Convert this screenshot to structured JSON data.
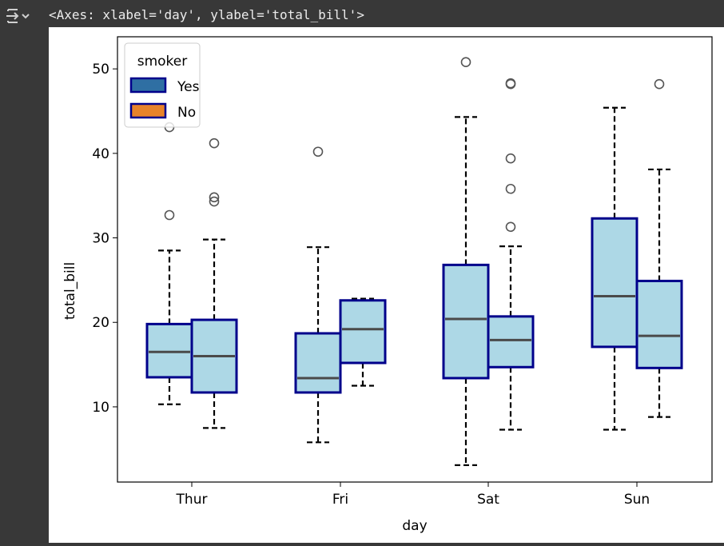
{
  "output": {
    "repr_text": "<Axes: xlabel='day', ylabel='total_bill'>",
    "icon": "output-expand-icon"
  },
  "chart_data": {
    "type": "box",
    "xlabel": "day",
    "ylabel": "total_bill",
    "categories": [
      "Thur",
      "Fri",
      "Sat",
      "Sun"
    ],
    "yticks": [
      10,
      20,
      30,
      40,
      50
    ],
    "ylim": [
      1.1,
      53.8
    ],
    "grid": false,
    "legend": {
      "title": "smoker",
      "placement": "upper left",
      "entries": [
        {
          "label": "Yes",
          "color": "#2f6fa3"
        },
        {
          "label": "No",
          "color": "#e8832a"
        }
      ]
    },
    "style": {
      "box_fill": "#add8e6",
      "box_edge": "#00008b",
      "median_color": "#4a4a4a",
      "whisker_style": "dashed"
    },
    "series": [
      {
        "name": "Yes",
        "boxes": [
          {
            "category": "Thur",
            "whisker_low": 10.3,
            "q1": 13.5,
            "median": 16.5,
            "q3": 19.8,
            "whisker_high": 28.5,
            "outliers": [
              32.7,
              43.1
            ]
          },
          {
            "category": "Fri",
            "whisker_low": 5.8,
            "q1": 11.7,
            "median": 13.4,
            "q3": 18.7,
            "whisker_high": 28.9,
            "outliers": [
              40.2
            ]
          },
          {
            "category": "Sat",
            "whisker_low": 3.1,
            "q1": 13.4,
            "median": 20.4,
            "q3": 26.8,
            "whisker_high": 44.3,
            "outliers": [
              50.8
            ]
          },
          {
            "category": "Sun",
            "whisker_low": 7.3,
            "q1": 17.1,
            "median": 23.1,
            "q3": 32.3,
            "whisker_high": 45.4,
            "outliers": []
          }
        ]
      },
      {
        "name": "No",
        "boxes": [
          {
            "category": "Thur",
            "whisker_low": 7.5,
            "q1": 11.7,
            "median": 16.0,
            "q3": 20.3,
            "whisker_high": 29.8,
            "outliers": [
              34.3,
              34.8,
              41.2
            ]
          },
          {
            "category": "Fri",
            "whisker_low": 12.5,
            "q1": 15.2,
            "median": 19.2,
            "q3": 22.6,
            "whisker_high": 22.8,
            "outliers": []
          },
          {
            "category": "Sat",
            "whisker_low": 7.3,
            "q1": 14.7,
            "median": 17.9,
            "q3": 20.7,
            "whisker_high": 29.0,
            "outliers": [
              31.3,
              35.8,
              39.4,
              48.2,
              48.3
            ]
          },
          {
            "category": "Sun",
            "whisker_low": 8.8,
            "q1": 14.6,
            "median": 18.4,
            "q3": 24.9,
            "whisker_high": 38.1,
            "outliers": [
              48.2
            ]
          }
        ]
      }
    ]
  }
}
